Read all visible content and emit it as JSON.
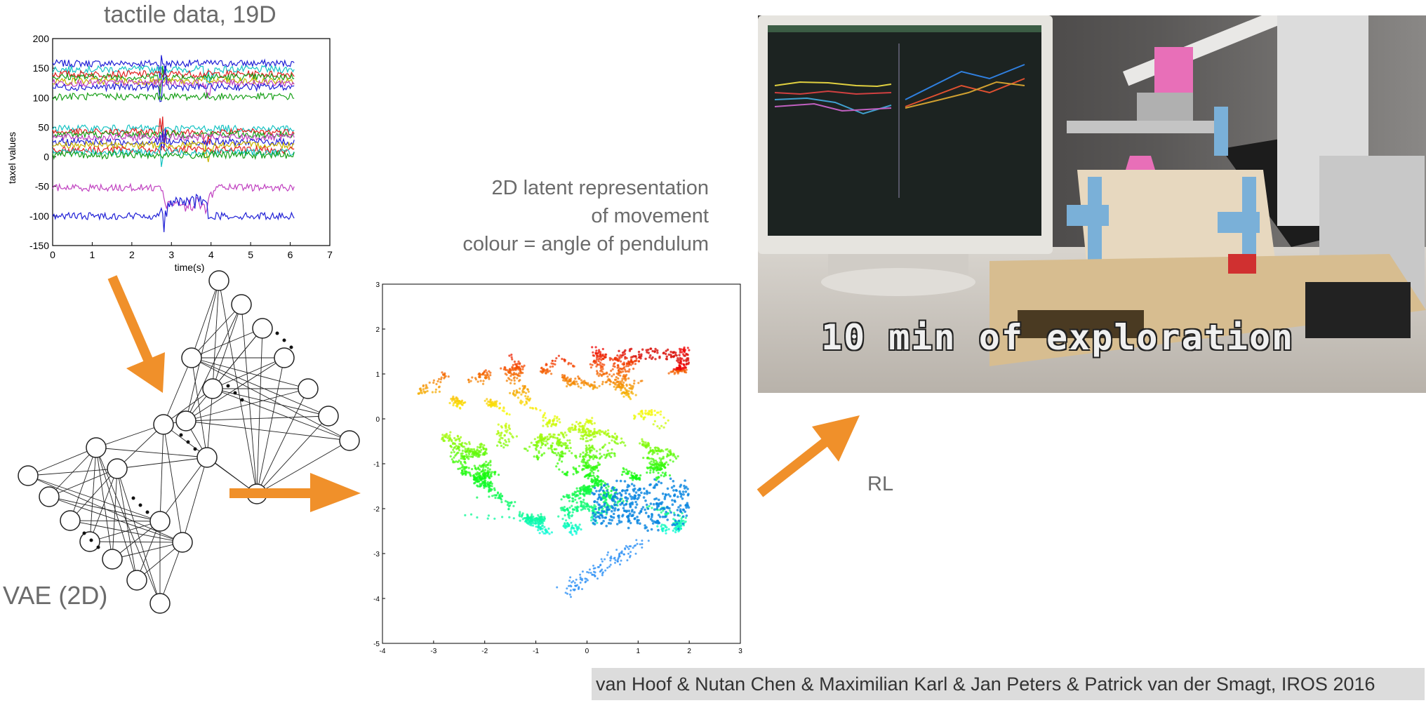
{
  "tactile_title": "tactile data, 19D",
  "vae_label": "VAE (2D)",
  "latent_caption": [
    "2D latent representation",
    "of movement",
    "colour = angle of pendulum"
  ],
  "rl_label": "RL",
  "video_caption": "10 min of exploration",
  "citation": "van Hoof & Nutan Chen & Maximilian Karl & Jan Peters & Patrick van der Smagt, IROS 2016",
  "colors": {
    "arrow": "#f0902a",
    "caption_bg": "#dcdcdc"
  },
  "chart_data": [
    {
      "type": "line",
      "xlabel": "time(s)",
      "ylabel": "taxel values",
      "xlim": [
        0,
        7
      ],
      "ylim": [
        -150,
        200
      ],
      "xticks": [
        "0",
        "1",
        "2",
        "3",
        "4",
        "5",
        "6",
        "7"
      ],
      "yticks": [
        "200",
        "150",
        "100",
        "50",
        "0",
        "-50",
        "-100",
        "-150"
      ],
      "series_baselines": [
        158,
        148,
        140,
        135,
        128,
        125,
        118,
        102,
        48,
        42,
        38,
        33,
        25,
        20,
        12,
        8,
        3,
        -52,
        -100
      ],
      "series_colors": [
        "#1f1fd6",
        "#17c3c3",
        "#e02020",
        "#18a018",
        "#c8b400",
        "#c040c0",
        "#1f1fd6",
        "#18a018",
        "#17c3c3",
        "#e02020",
        "#18a018",
        "#c040c0",
        "#1f1fd6",
        "#c8b400",
        "#e02020",
        "#17c3c3",
        "#18a018",
        "#c040c0",
        "#1f1fd6"
      ],
      "x_end": 6.1
    },
    {
      "type": "scatter",
      "xlim": [
        -4,
        3
      ],
      "ylim": [
        -5,
        3
      ],
      "xticks": [
        "-4",
        "-3",
        "-2",
        "-1",
        "0",
        "1",
        "2",
        "3"
      ],
      "yticks": [
        "3",
        "2",
        "1",
        "0",
        "-1",
        "-2",
        "-3",
        "-4",
        "-5"
      ],
      "color_by": "angle of pendulum"
    }
  ]
}
